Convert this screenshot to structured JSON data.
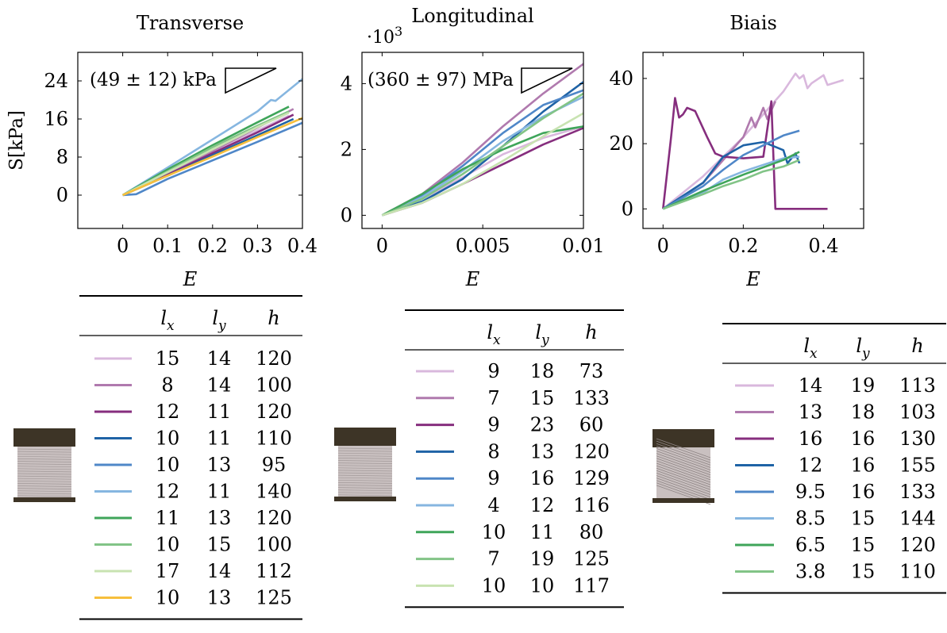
{
  "colors": {
    "c1": "#d9b8dd",
    "c2": "#b07aae",
    "c3": "#862e7e",
    "c4": "#1f63a6",
    "c5": "#4f87c8",
    "c6": "#86b6e0",
    "c7": "#3fa55a",
    "c8": "#82c487",
    "c9": "#c8e3b1",
    "c10": "#f7bf3c",
    "specimen_clamp": "#3d3426",
    "specimen_body": "#c9c0c0"
  },
  "shared": {
    "ylabel": "S[kPa]",
    "xlabel": "E",
    "table_headers": [
      "l_x",
      "l_y",
      "h"
    ]
  },
  "chart_data": [
    {
      "type": "line",
      "title": "Transverse",
      "xlabel": "E",
      "ylabel": "S[kPa]",
      "xlim": [
        -0.1,
        0.4
      ],
      "ylim": [
        -7,
        30
      ],
      "xticks": [
        "0",
        "0.1",
        "0.2",
        "0.3",
        "0.4"
      ],
      "xtick_values": [
        0,
        0.1,
        0.2,
        0.3,
        0.4
      ],
      "yticks": [
        "0",
        "8",
        "16",
        "24"
      ],
      "ytick_values": [
        0,
        8,
        16,
        24
      ],
      "grid": false,
      "annotation": "(49 ± 12) kPa",
      "series": [
        {
          "color": "c1",
          "points": [
            [
              0,
              0
            ],
            [
              0.1,
              4.6
            ],
            [
              0.2,
              9.2
            ],
            [
              0.3,
              13.6
            ],
            [
              0.37,
              16.7
            ]
          ]
        },
        {
          "color": "c2",
          "points": [
            [
              0,
              0
            ],
            [
              0.1,
              4.5
            ],
            [
              0.2,
              9.3
            ],
            [
              0.3,
              14.2
            ],
            [
              0.38,
              18.1
            ]
          ]
        },
        {
          "color": "c3",
          "points": [
            [
              0,
              0
            ],
            [
              0.1,
              4.3
            ],
            [
              0.2,
              8.8
            ],
            [
              0.3,
              13.2
            ],
            [
              0.38,
              16.9
            ]
          ]
        },
        {
          "color": "c4",
          "points": [
            [
              0,
              0
            ],
            [
              0.1,
              4.1
            ],
            [
              0.2,
              8.4
            ],
            [
              0.3,
              12.6
            ],
            [
              0.38,
              16.0
            ]
          ]
        },
        {
          "color": "c5",
          "points": [
            [
              0,
              0
            ],
            [
              0.03,
              0.2
            ],
            [
              0.1,
              3.4
            ],
            [
              0.2,
              7.3
            ],
            [
              0.3,
              11.2
            ],
            [
              0.4,
              15.2
            ]
          ]
        },
        {
          "color": "c6",
          "points": [
            [
              0,
              0
            ],
            [
              0.1,
              5.8
            ],
            [
              0.2,
              11.7
            ],
            [
              0.3,
              17.6
            ],
            [
              0.33,
              20
            ],
            [
              0.34,
              19.8
            ],
            [
              0.4,
              24.4
            ]
          ]
        },
        {
          "color": "c7",
          "points": [
            [
              0,
              0
            ],
            [
              0.1,
              5.4
            ],
            [
              0.2,
              10.5
            ],
            [
              0.3,
              15.3
            ],
            [
              0.37,
              18.6
            ]
          ]
        },
        {
          "color": "c8",
          "points": [
            [
              0,
              0
            ],
            [
              0.1,
              5.0
            ],
            [
              0.2,
              10.1
            ],
            [
              0.3,
              14.6
            ],
            [
              0.37,
              17.6
            ]
          ]
        },
        {
          "color": "c9",
          "points": [
            [
              0,
              0
            ],
            [
              0.1,
              4.8
            ],
            [
              0.2,
              9.6
            ],
            [
              0.3,
              14.3
            ],
            [
              0.37,
              17.3
            ]
          ]
        },
        {
          "color": "c10",
          "points": [
            [
              0,
              0
            ],
            [
              0.1,
              4.1
            ],
            [
              0.2,
              8.1
            ],
            [
              0.3,
              12.2
            ],
            [
              0.4,
              16.2
            ]
          ]
        }
      ]
    },
    {
      "type": "line",
      "title": "Longitudinal",
      "xlabel": "E",
      "xlim": [
        -0.001,
        0.01
      ],
      "ylim": [
        -400,
        4950
      ],
      "xticks": [
        "0",
        "0.005",
        "0.01"
      ],
      "xtick_values": [
        0,
        0.005,
        0.01
      ],
      "yticks": [
        "0",
        "2",
        "4"
      ],
      "ytick_values": [
        0,
        2000,
        4000
      ],
      "scale_label_base": "·10",
      "scale_label_exp": "3",
      "grid": false,
      "annotation": "(360 ± 97) MPa",
      "series": [
        {
          "color": "c1",
          "points": [
            [
              0,
              0
            ],
            [
              0.002,
              500
            ],
            [
              0.004,
              1150
            ],
            [
              0.006,
              1850
            ],
            [
              0.008,
              2350
            ],
            [
              0.01,
              2700
            ]
          ]
        },
        {
          "color": "c2",
          "points": [
            [
              0,
              0
            ],
            [
              0.002,
              650
            ],
            [
              0.004,
              1600
            ],
            [
              0.006,
              2700
            ],
            [
              0.008,
              3700
            ],
            [
              0.01,
              4600
            ]
          ]
        },
        {
          "color": "c3",
          "points": [
            [
              0,
              0
            ],
            [
              0.002,
              380
            ],
            [
              0.004,
              950
            ],
            [
              0.006,
              1550
            ],
            [
              0.008,
              2150
            ],
            [
              0.01,
              2650
            ]
          ]
        },
        {
          "color": "c4",
          "points": [
            [
              0,
              0
            ],
            [
              0.002,
              420
            ],
            [
              0.004,
              1100
            ],
            [
              0.006,
              2100
            ],
            [
              0.008,
              3150
            ],
            [
              0.01,
              4050
            ]
          ]
        },
        {
          "color": "c5",
          "points": [
            [
              0,
              0
            ],
            [
              0.002,
              600
            ],
            [
              0.004,
              1500
            ],
            [
              0.006,
              2500
            ],
            [
              0.008,
              3350
            ],
            [
              0.01,
              3800
            ]
          ]
        },
        {
          "color": "c6",
          "points": [
            [
              0,
              0
            ],
            [
              0.002,
              550
            ],
            [
              0.004,
              1350
            ],
            [
              0.006,
              2250
            ],
            [
              0.008,
              3000
            ],
            [
              0.01,
              3600
            ]
          ]
        },
        {
          "color": "c7",
          "points": [
            [
              0,
              0
            ],
            [
              0.002,
              650
            ],
            [
              0.004,
              1400
            ],
            [
              0.006,
              2000
            ],
            [
              0.008,
              2500
            ],
            [
              0.01,
              2700
            ]
          ]
        },
        {
          "color": "c8",
          "points": [
            [
              0,
              0
            ],
            [
              0.002,
              500
            ],
            [
              0.004,
              1250
            ],
            [
              0.006,
              2100
            ],
            [
              0.008,
              2950
            ],
            [
              0.01,
              3700
            ]
          ]
        },
        {
          "color": "c9",
          "points": [
            [
              0,
              0
            ],
            [
              0.002,
              380
            ],
            [
              0.004,
              950
            ],
            [
              0.006,
              1650
            ],
            [
              0.008,
              2400
            ],
            [
              0.01,
              3100
            ]
          ]
        }
      ]
    },
    {
      "type": "line",
      "title": "Biais",
      "xlabel": "E",
      "xlim": [
        -0.05,
        0.5
      ],
      "ylim": [
        -6,
        48
      ],
      "xticks": [
        "0",
        "0.2",
        "0.4"
      ],
      "xtick_values": [
        0,
        0.2,
        0.4
      ],
      "yticks": [
        "0",
        "20",
        "40"
      ],
      "ytick_values": [
        0,
        20,
        40
      ],
      "grid": false,
      "series": [
        {
          "color": "c1",
          "points": [
            [
              0,
              0
            ],
            [
              0.1,
              10
            ],
            [
              0.2,
              22
            ],
            [
              0.3,
              36
            ],
            [
              0.33,
              41.5
            ],
            [
              0.34,
              40
            ],
            [
              0.35,
              41
            ],
            [
              0.36,
              37
            ],
            [
              0.37,
              38.5
            ],
            [
              0.4,
              41
            ],
            [
              0.41,
              38
            ],
            [
              0.45,
              39.5
            ]
          ]
        },
        {
          "color": "c2",
          "points": [
            [
              0,
              0
            ],
            [
              0.1,
              8
            ],
            [
              0.2,
              22
            ],
            [
              0.22,
              28
            ],
            [
              0.23,
              25
            ],
            [
              0.25,
              31
            ],
            [
              0.26,
              27.5
            ],
            [
              0.28,
              33
            ]
          ]
        },
        {
          "color": "c3",
          "points": [
            [
              0,
              0
            ],
            [
              0.02,
              22
            ],
            [
              0.03,
              34
            ],
            [
              0.04,
              28
            ],
            [
              0.05,
              29
            ],
            [
              0.06,
              31
            ],
            [
              0.08,
              30
            ],
            [
              0.11,
              22
            ],
            [
              0.13,
              17
            ],
            [
              0.15,
              16
            ],
            [
              0.2,
              15.5
            ],
            [
              0.25,
              16
            ],
            [
              0.27,
              33
            ],
            [
              0.28,
              0
            ],
            [
              0.41,
              0
            ]
          ]
        },
        {
          "color": "c4",
          "points": [
            [
              0,
              0
            ],
            [
              0.1,
              8
            ],
            [
              0.15,
              16
            ],
            [
              0.2,
              19.5
            ],
            [
              0.25,
              20.5
            ],
            [
              0.28,
              19
            ],
            [
              0.3,
              18
            ],
            [
              0.31,
              14
            ],
            [
              0.33,
              17
            ],
            [
              0.34,
              14
            ]
          ]
        },
        {
          "color": "c5",
          "points": [
            [
              0,
              0
            ],
            [
              0.1,
              7
            ],
            [
              0.15,
              12
            ],
            [
              0.2,
              16.5
            ],
            [
              0.25,
              19.5
            ],
            [
              0.3,
              22.5
            ],
            [
              0.34,
              24
            ]
          ]
        },
        {
          "color": "c6",
          "points": [
            [
              0,
              0
            ],
            [
              0.1,
              5
            ],
            [
              0.15,
              9
            ],
            [
              0.2,
              11.5
            ],
            [
              0.25,
              13.5
            ],
            [
              0.3,
              15.5
            ],
            [
              0.34,
              16
            ]
          ]
        },
        {
          "color": "c7",
          "points": [
            [
              0,
              0
            ],
            [
              0.1,
              5.5
            ],
            [
              0.2,
              10.5
            ],
            [
              0.3,
              15
            ],
            [
              0.34,
              17.5
            ]
          ]
        },
        {
          "color": "c8",
          "points": [
            [
              0,
              0
            ],
            [
              0.1,
              4.5
            ],
            [
              0.15,
              7
            ],
            [
              0.2,
              9
            ],
            [
              0.25,
              11.5
            ],
            [
              0.3,
              13
            ],
            [
              0.34,
              15
            ]
          ]
        }
      ]
    }
  ],
  "tables": [
    {
      "title": "Transverse",
      "rows": [
        {
          "color": "c1",
          "lx": "15",
          "ly": "14",
          "h": "120"
        },
        {
          "color": "c2",
          "lx": "8",
          "ly": "14",
          "h": "100"
        },
        {
          "color": "c3",
          "lx": "12",
          "ly": "11",
          "h": "120"
        },
        {
          "color": "c4",
          "lx": "10",
          "ly": "11",
          "h": "110"
        },
        {
          "color": "c5",
          "lx": "10",
          "ly": "13",
          "h": "95"
        },
        {
          "color": "c6",
          "lx": "12",
          "ly": "11",
          "h": "140"
        },
        {
          "color": "c7",
          "lx": "11",
          "ly": "13",
          "h": "120"
        },
        {
          "color": "c8",
          "lx": "10",
          "ly": "15",
          "h": "100"
        },
        {
          "color": "c9",
          "lx": "17",
          "ly": "14",
          "h": "112"
        },
        {
          "color": "c10",
          "lx": "10",
          "ly": "13",
          "h": "125"
        }
      ]
    },
    {
      "title": "Longitudinal",
      "rows": [
        {
          "color": "c1",
          "lx": "9",
          "ly": "18",
          "h": "73"
        },
        {
          "color": "c2",
          "lx": "7",
          "ly": "15",
          "h": "133"
        },
        {
          "color": "c3",
          "lx": "9",
          "ly": "23",
          "h": "60"
        },
        {
          "color": "c4",
          "lx": "8",
          "ly": "13",
          "h": "120"
        },
        {
          "color": "c5",
          "lx": "9",
          "ly": "16",
          "h": "129"
        },
        {
          "color": "c6",
          "lx": "4",
          "ly": "12",
          "h": "116"
        },
        {
          "color": "c7",
          "lx": "10",
          "ly": "11",
          "h": "80"
        },
        {
          "color": "c8",
          "lx": "7",
          "ly": "19",
          "h": "125"
        },
        {
          "color": "c9",
          "lx": "10",
          "ly": "10",
          "h": "117"
        }
      ]
    },
    {
      "title": "Biais",
      "rows": [
        {
          "color": "c1",
          "lx": "14",
          "ly": "19",
          "h": "113"
        },
        {
          "color": "c2",
          "lx": "13",
          "ly": "18",
          "h": "103"
        },
        {
          "color": "c3",
          "lx": "16",
          "ly": "16",
          "h": "130"
        },
        {
          "color": "c4",
          "lx": "12",
          "ly": "16",
          "h": "155"
        },
        {
          "color": "c5",
          "lx": "9.5",
          "ly": "16",
          "h": "133"
        },
        {
          "color": "c6",
          "lx": "8.5",
          "ly": "15",
          "h": "144"
        },
        {
          "color": "c7",
          "lx": "6.5",
          "ly": "15",
          "h": "120"
        },
        {
          "color": "c8",
          "lx": "3.8",
          "ly": "15",
          "h": "110"
        }
      ]
    }
  ]
}
